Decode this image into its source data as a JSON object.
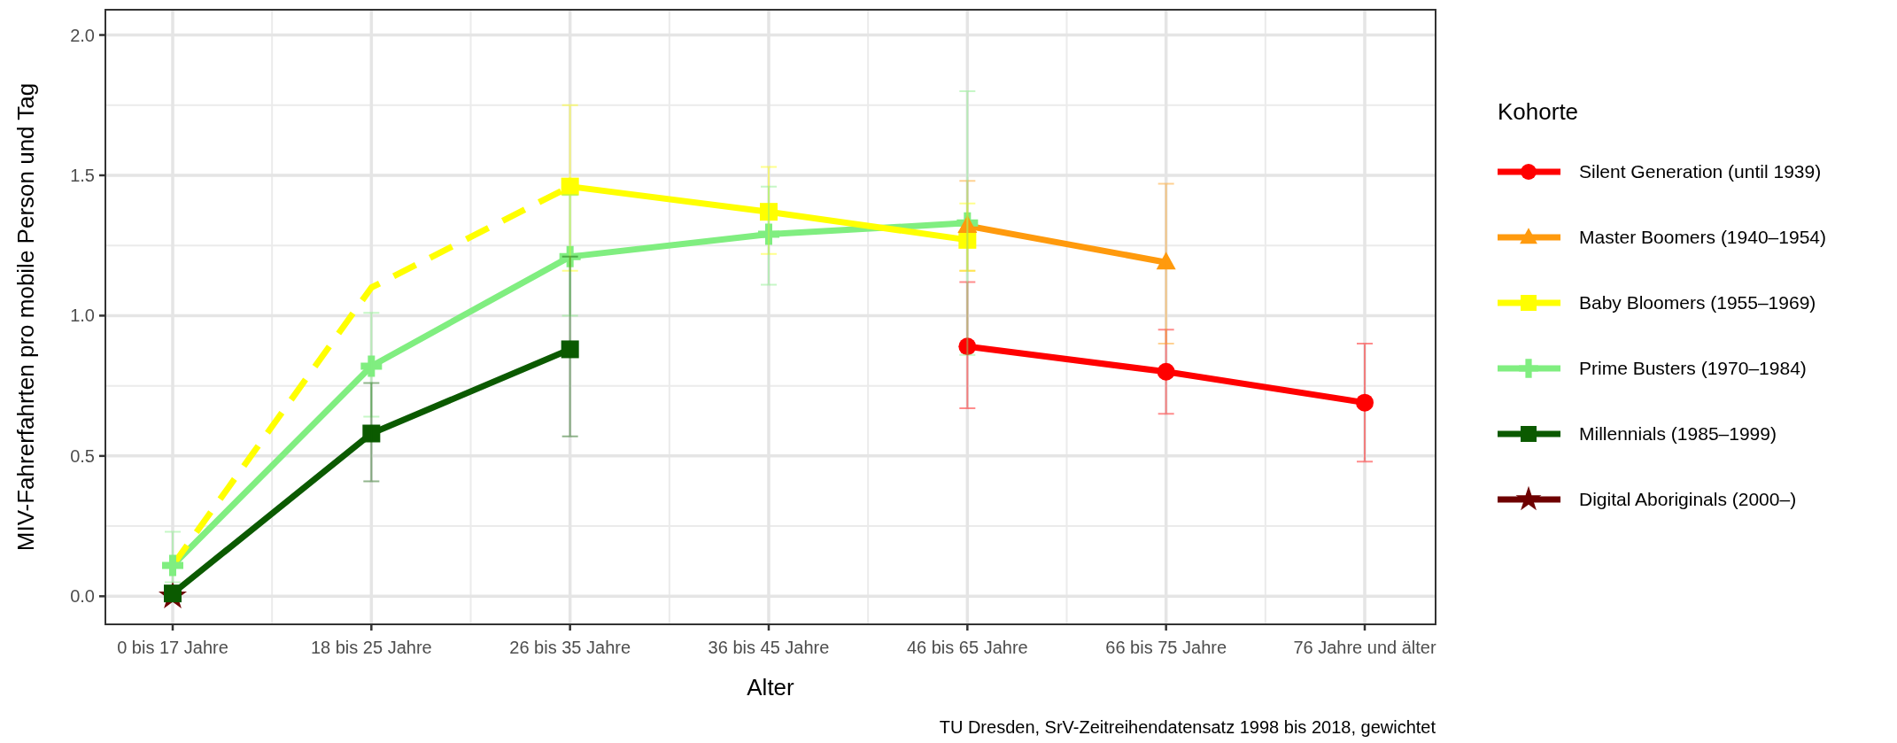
{
  "chart_data": {
    "type": "line",
    "xlabel": "Alter",
    "ylabel": "MIV-Fahrerfahrten pro mobile Person und Tag",
    "legend_title": "Kohorte",
    "categories": [
      "0 bis 17 Jahre",
      "18 bis 25 Jahre",
      "26 bis 35 Jahre",
      "36 bis 45 Jahre",
      "46 bis 65 Jahre",
      "66 bis 75 Jahre",
      "76 Jahre und älter"
    ],
    "ylim": [
      -0.1,
      2.09
    ],
    "yticks": [
      {
        "value": 0,
        "label": "0.0"
      },
      {
        "value": 0.5,
        "label": "0.5"
      },
      {
        "value": 1,
        "label": "1.0"
      },
      {
        "value": 1.5,
        "label": "1.5"
      },
      {
        "value": 2,
        "label": "2.0"
      }
    ],
    "grid": true,
    "legend": "right",
    "series": [
      {
        "name": "Silent Generation (until 1939)",
        "color": "#ff0000",
        "marker": "circle",
        "line_style": "solid",
        "values": [
          null,
          null,
          null,
          null,
          0.89,
          0.8,
          0.69
        ],
        "errors": [
          null,
          null,
          null,
          null,
          [
            0.67,
            1.12
          ],
          [
            0.65,
            0.95
          ],
          [
            0.48,
            0.9
          ]
        ]
      },
      {
        "name": "Master Boomers (1940–1954)",
        "color": "#ff9a0d",
        "marker": "triangle",
        "line_style": "solid",
        "values": [
          null,
          null,
          null,
          null,
          1.32,
          1.19,
          null
        ],
        "errors": [
          null,
          null,
          null,
          null,
          [
            1.16,
            1.48
          ],
          [
            0.9,
            1.47
          ],
          null
        ]
      },
      {
        "name": "Baby Bloomers (1955–1969)",
        "color": "#ffff00",
        "marker": "square",
        "line_style": "solid",
        "values": [
          null,
          null,
          1.46,
          1.37,
          1.27,
          null,
          null
        ],
        "errors": [
          null,
          null,
          [
            1.16,
            1.75
          ],
          [
            1.22,
            1.53
          ],
          [
            1.16,
            1.4
          ],
          null,
          null
        ]
      },
      {
        "color": "#ffff00",
        "marker": "none",
        "line_style": "dashed",
        "values": [
          0.11,
          1.1,
          1.46,
          null,
          null,
          null,
          null
        ]
      },
      {
        "name": "Prime Busters (1970–1984)",
        "color": "#80ee80",
        "marker": "cross",
        "line_style": "solid",
        "values": [
          0.11,
          0.82,
          1.21,
          1.29,
          1.33,
          null,
          null
        ],
        "errors": [
          [
            0.05,
            0.23
          ],
          [
            0.64,
            1.01
          ],
          [
            1.0,
            1.43
          ],
          [
            1.11,
            1.46
          ],
          [
            0.86,
            1.8
          ],
          null,
          null
        ]
      },
      {
        "name": "Millennials (1985–1999)",
        "color": "#0b5a00",
        "marker": "square",
        "line_style": "solid",
        "values": [
          0.01,
          0.58,
          0.88,
          null,
          null,
          null,
          null
        ],
        "errors": [
          null,
          [
            0.41,
            0.76
          ],
          [
            0.57,
            1.21
          ],
          null,
          null,
          null,
          null
        ]
      },
      {
        "name": "Digital Aboriginals (2000–)",
        "color": "#6e0000",
        "marker": "star",
        "line_style": "solid",
        "values": [
          0.0,
          null,
          null,
          null,
          null,
          null,
          null
        ]
      }
    ],
    "annotations": [
      "TU Dresden, SrV-Zeitreihendatensatz 1998 bis 2018, gewichtet"
    ]
  }
}
